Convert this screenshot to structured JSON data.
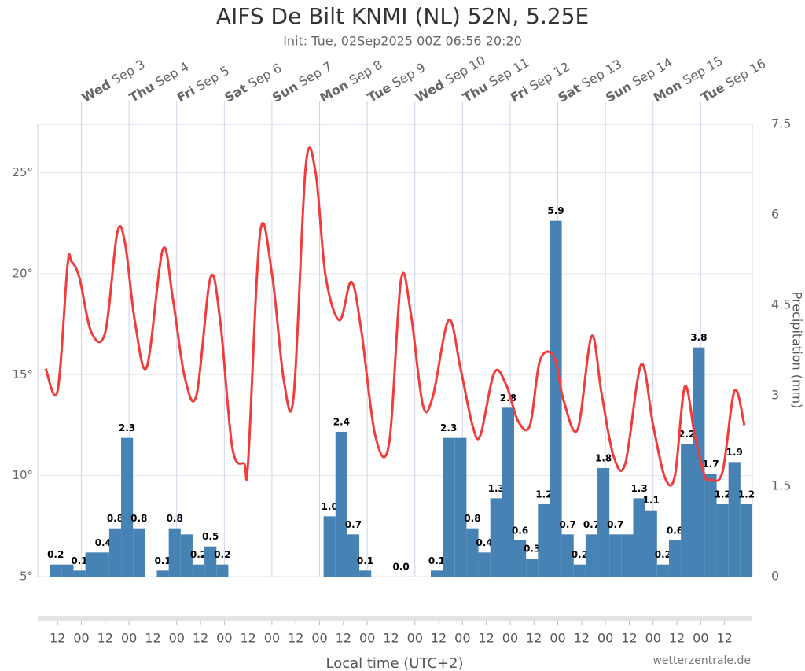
{
  "chart_data": {
    "type": "combo",
    "title": "AIFS De Bilt KNMI (NL) 52N, 5.25E",
    "subtitle": "Init: Tue, 02Sep2025 00Z 06:56 20:20",
    "xlabel": "Local time (UTC+2)",
    "y2label": "Precipitation (mm)",
    "credit": "wetterzentrale.de",
    "xlim": [
      0,
      360
    ],
    "xticks": [
      {
        "value": 10,
        "label": "12"
      },
      {
        "value": 22,
        "label": "00"
      },
      {
        "value": 34,
        "label": "12"
      },
      {
        "value": 46,
        "label": "00"
      },
      {
        "value": 58,
        "label": "12"
      },
      {
        "value": 70,
        "label": "00"
      },
      {
        "value": 82,
        "label": "12"
      },
      {
        "value": 94,
        "label": "00"
      },
      {
        "value": 106,
        "label": "12"
      },
      {
        "value": 118,
        "label": "00"
      },
      {
        "value": 130,
        "label": "12"
      },
      {
        "value": 142,
        "label": "00"
      },
      {
        "value": 154,
        "label": "12"
      },
      {
        "value": 166,
        "label": "00"
      },
      {
        "value": 178,
        "label": "12"
      },
      {
        "value": 190,
        "label": "00"
      },
      {
        "value": 202,
        "label": "12"
      },
      {
        "value": 214,
        "label": "00"
      },
      {
        "value": 226,
        "label": "12"
      },
      {
        "value": 238,
        "label": "00"
      },
      {
        "value": 250,
        "label": "12"
      },
      {
        "value": 262,
        "label": "00"
      },
      {
        "value": 274,
        "label": "12"
      },
      {
        "value": 286,
        "label": "00"
      },
      {
        "value": 298,
        "label": "12"
      },
      {
        "value": 310,
        "label": "00"
      },
      {
        "value": 322,
        "label": "12"
      },
      {
        "value": 334,
        "label": "00"
      },
      {
        "value": 346,
        "label": "12"
      }
    ],
    "x2ticks": [
      {
        "value": 22,
        "label": "Wed Sep 3"
      },
      {
        "value": 46,
        "label": "Thu Sep 4"
      },
      {
        "value": 70,
        "label": "Fri Sep 5"
      },
      {
        "value": 94,
        "label": "Sat Sep 6"
      },
      {
        "value": 118,
        "label": "Sun Sep 7"
      },
      {
        "value": 142,
        "label": "Mon Sep 8"
      },
      {
        "value": 166,
        "label": "Tue Sep 9"
      },
      {
        "value": 190,
        "label": "Wed Sep 10"
      },
      {
        "value": 214,
        "label": "Thu Sep 11"
      },
      {
        "value": 238,
        "label": "Fri Sep 12"
      },
      {
        "value": 262,
        "label": "Sat Sep 13"
      },
      {
        "value": 286,
        "label": "Sun Sep 14"
      },
      {
        "value": 310,
        "label": "Mon Sep 15"
      },
      {
        "value": 334,
        "label": "Tue Sep 16"
      }
    ],
    "ylim": [
      5,
      27.4
    ],
    "yticks": [
      {
        "value": 5,
        "label": "5°"
      },
      {
        "value": 10,
        "label": "10°"
      },
      {
        "value": 15,
        "label": "15°"
      },
      {
        "value": 20,
        "label": "20°"
      },
      {
        "value": 25,
        "label": "25°"
      }
    ],
    "y2lim": [
      0,
      7.5
    ],
    "y2ticks": [
      0,
      1.5,
      3,
      4.5,
      6,
      7.5
    ],
    "grid": true,
    "series": [
      {
        "type": "bar",
        "axis": "y2",
        "color": "#4682b4",
        "x": [
          9,
          15,
          21,
          27,
          33,
          39,
          45,
          51,
          63,
          69,
          75,
          81,
          87,
          93,
          147,
          153,
          159,
          165,
          183,
          201,
          207,
          213,
          219,
          225,
          231,
          237,
          243,
          249,
          255,
          261,
          267,
          273,
          279,
          285,
          291,
          297,
          303,
          309,
          315,
          321,
          327,
          333,
          339,
          345,
          351,
          357
        ],
        "values": [
          0.2,
          0.2,
          0.1,
          0.4,
          0.4,
          0.8,
          2.3,
          0.8,
          0.1,
          0.8,
          0.7,
          0.2,
          0.5,
          0.2,
          1.0,
          2.4,
          0.7,
          0.1,
          0,
          0.1,
          2.3,
          2.3,
          0.8,
          0.4,
          1.3,
          2.8,
          0.6,
          0.3,
          1.2,
          5.9,
          0.7,
          0.2,
          0.7,
          1.8,
          0.7,
          0.7,
          1.3,
          1.1,
          0.2,
          0.6,
          2.2,
          3.8,
          1.7,
          1.2,
          1.9,
          1.2
        ],
        "value_labels": [
          "0.2",
          null,
          "0.1",
          null,
          "0.4",
          "0.8",
          "2.3",
          "0.8",
          "0.1",
          "0.8",
          null,
          "0.2",
          "0.5",
          "0.2",
          "1.0",
          "2.4",
          "0.7",
          "0.1",
          "0.0",
          "0.1",
          "2.3",
          null,
          "0.8",
          "0.4",
          "1.3",
          "2.8",
          "0.6",
          "0.3",
          "1.2",
          "5.9",
          "0.7",
          "0.2",
          "0.7",
          "1.8",
          "0.7",
          null,
          "1.3",
          "1.1",
          "0.2",
          "0.6",
          "2.2",
          "3.8",
          "1.7",
          "1.2",
          "1.9",
          "1.2"
        ]
      },
      {
        "type": "line",
        "color": "#f03c3c",
        "x": [
          4,
          10,
          15,
          17,
          21,
          27,
          34,
          40,
          44,
          49,
          55,
          63,
          68,
          74,
          80,
          87,
          92,
          98,
          104,
          106,
          112,
          118,
          124,
          129,
          135,
          140,
          145,
          152,
          158,
          163,
          170,
          177,
          183,
          188,
          194,
          199,
          207,
          213,
          219,
          223,
          230,
          236,
          242,
          248,
          253,
          260,
          265,
          272,
          279,
          284,
          290,
          296,
          304,
          310,
          316,
          321,
          326,
          331,
          336,
          339,
          345,
          351,
          356
        ],
        "values": [
          15.3,
          14.2,
          20.4,
          20.6,
          19.8,
          17.1,
          17.1,
          22.0,
          21.5,
          17.6,
          15.4,
          21.2,
          18.8,
          14.9,
          14.0,
          19.8,
          17.6,
          11.4,
          10.6,
          10.7,
          22.0,
          20.0,
          14.7,
          14.0,
          25.3,
          25.0,
          19.9,
          17.7,
          19.6,
          17.2,
          12.0,
          11.6,
          19.7,
          18.0,
          13.5,
          13.9,
          17.7,
          15.3,
          12.5,
          12.0,
          15.1,
          14.5,
          12.7,
          12.5,
          15.7,
          15.9,
          13.7,
          12.3,
          16.9,
          14.1,
          11.0,
          10.6,
          15.5,
          12.5,
          9.9,
          10.0,
          14.4,
          12.0,
          10.0,
          9.8,
          10.2,
          14.2,
          12.5
        ]
      }
    ]
  }
}
